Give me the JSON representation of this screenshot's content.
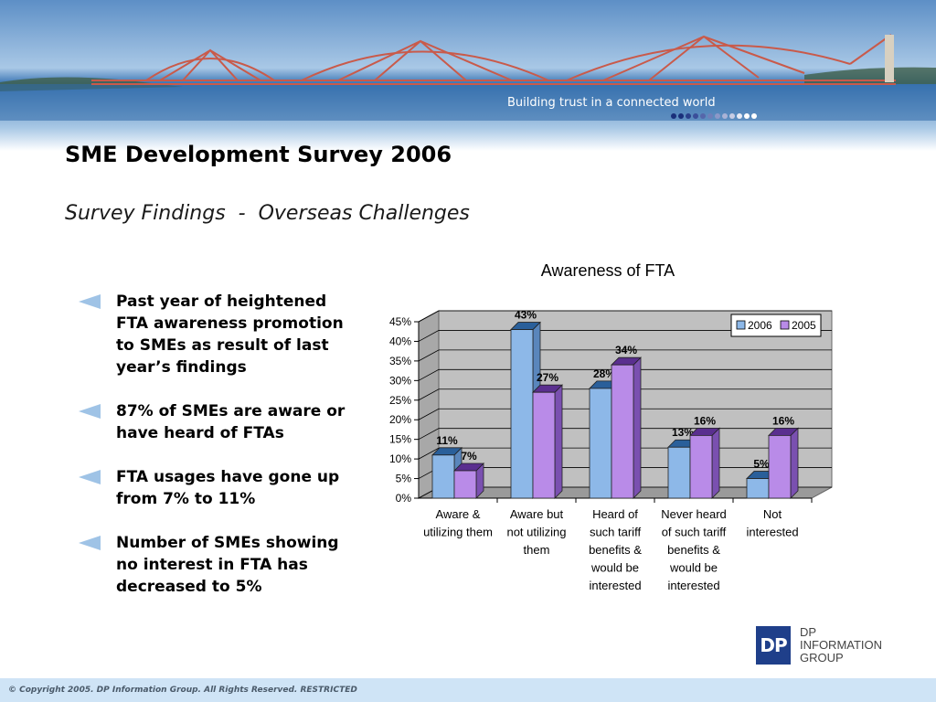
{
  "banner": {
    "tagline": "Building trust in a connected world"
  },
  "header": {
    "title": "SME Development Survey 2006",
    "subtitle": "Survey Findings  -  Overseas Challenges"
  },
  "bullets": [
    {
      "text": "Past year of heightened FTA awareness promotion to SMEs as result of last year’s findings"
    },
    {
      "text": "87% of SMEs are aware or have heard of FTAs"
    },
    {
      "text": "FTA usages have gone up from 7% to 11%"
    },
    {
      "text": "Number of SMEs showing no interest in FTA has decreased to 5%"
    }
  ],
  "chart_data": {
    "type": "bar",
    "title": "Awareness of FTA",
    "categories": [
      [
        "Aware &",
        "utilizing them"
      ],
      [
        "Aware but",
        "not utilizing",
        "them"
      ],
      [
        "Heard of",
        "such tariff",
        "benefits &",
        "would be",
        "interested"
      ],
      [
        "Never heard",
        "of such tariff",
        "benefits &",
        "would be",
        "interested"
      ],
      [
        "Not",
        "interested"
      ]
    ],
    "series": [
      {
        "name": "2006",
        "values": [
          11,
          43,
          28,
          13,
          5
        ],
        "labels": [
          "11%",
          "43%",
          "28%",
          "13%",
          "5%"
        ]
      },
      {
        "name": "2005",
        "values": [
          7,
          27,
          34,
          16,
          16
        ],
        "labels": [
          "7%",
          "27%",
          "34%",
          "16%",
          "16%"
        ]
      }
    ],
    "ylim": [
      0,
      45
    ],
    "yticks": [
      0,
      5,
      10,
      15,
      20,
      25,
      30,
      35,
      40,
      45
    ],
    "ytick_labels": [
      "0%",
      "5%",
      "10%",
      "15%",
      "20%",
      "25%",
      "30%",
      "35%",
      "40%",
      "45%"
    ],
    "grid": true,
    "legend": "top-right",
    "colors": {
      "2006": "#8db8e8",
      "2005": "#b98be8",
      "wall": "#c0c0c0",
      "floor": "#9a9a9a"
    }
  },
  "logo": {
    "mark": "DP",
    "lines": [
      "DP",
      "INFORMATION",
      "GROUP"
    ]
  },
  "footer": {
    "text": "© Copyright 2005. DP Information Group. All Rights Reserved. RESTRICTED"
  }
}
